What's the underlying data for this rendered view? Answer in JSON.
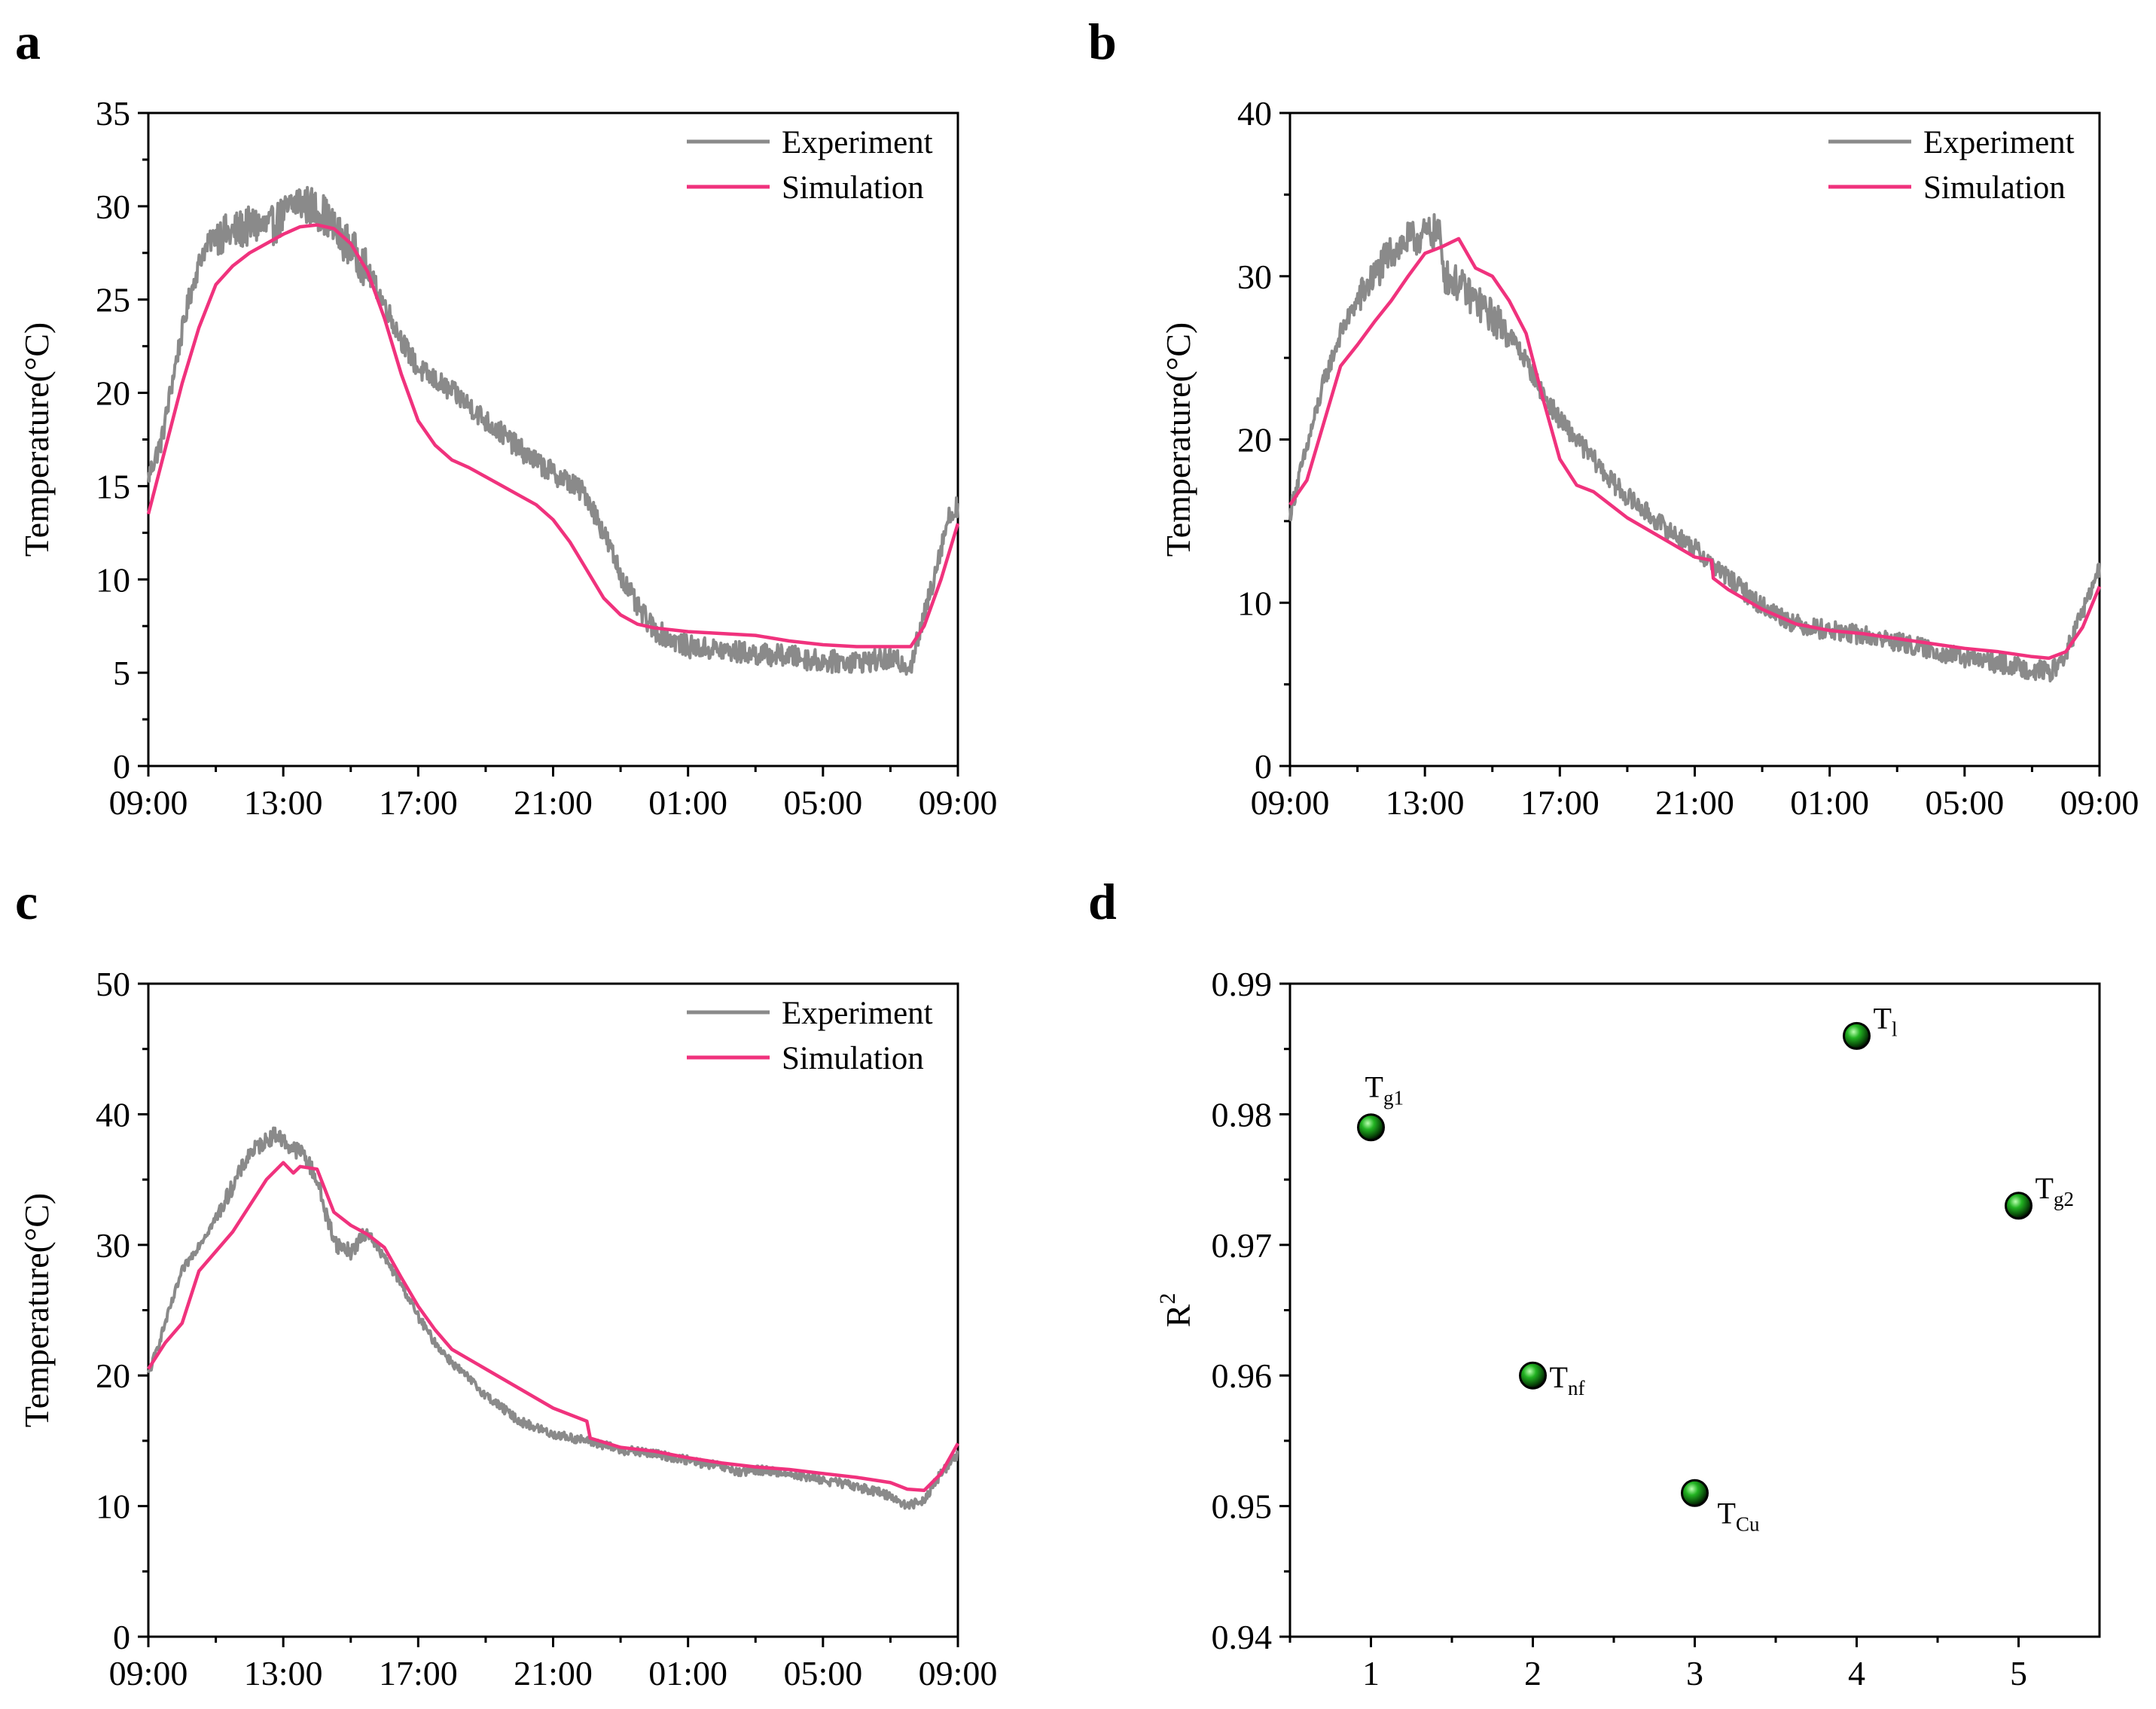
{
  "chart_data": [
    {
      "panel": "a",
      "type": "line",
      "xlabel": "",
      "ylabel": "Temperature(°C)",
      "ylim": [
        0,
        35
      ],
      "yticks": [
        "0",
        "5",
        "10",
        "15",
        "20",
        "25",
        "30",
        "35"
      ],
      "xlim": [
        0,
        24
      ],
      "xticks": [
        {
          "hour": 0,
          "label": "09:00"
        },
        {
          "hour": 4,
          "label": "13:00"
        },
        {
          "hour": 8,
          "label": "17:00"
        },
        {
          "hour": 12,
          "label": "21:00"
        },
        {
          "hour": 16,
          "label": "01:00"
        },
        {
          "hour": 20,
          "label": "05:00"
        },
        {
          "hour": 24,
          "label": "09:00"
        }
      ],
      "legend": "top-right",
      "series": [
        {
          "name": "Experiment",
          "color": "#8a8a8a",
          "noise": 0.6,
          "x": [
            0,
            0.4,
            0.8,
            1.2,
            1.6,
            2.0,
            2.4,
            2.8,
            3.2,
            3.6,
            4.0,
            4.4,
            4.8,
            5.2,
            5.6,
            6.0,
            6.4,
            6.8,
            7.2,
            7.6,
            8.0,
            8.4,
            8.8,
            9.2,
            9.6,
            10.0,
            10.5,
            11.0,
            11.5,
            12.0,
            12.5,
            13.0,
            13.5,
            14.0,
            14.5,
            15.0,
            15.5,
            16.0,
            17.0,
            18.0,
            19.0,
            20.0,
            21.0,
            22.0,
            22.6,
            23.0,
            23.4,
            23.7,
            24.0
          ],
          "y": [
            15.5,
            17.5,
            21.5,
            25.0,
            27.5,
            28.5,
            28.5,
            28.8,
            29.0,
            28.8,
            29.5,
            30.3,
            30.0,
            29.6,
            28.5,
            27.8,
            26.8,
            25.5,
            24.0,
            22.5,
            21.3,
            20.8,
            20.3,
            19.8,
            19.2,
            18.5,
            17.8,
            17.0,
            16.3,
            15.7,
            15.2,
            14.5,
            12.5,
            10.3,
            8.5,
            7.3,
            6.8,
            6.4,
            6.2,
            6.0,
            5.9,
            5.6,
            5.6,
            5.7,
            5.4,
            8.0,
            11.0,
            13.2,
            14.0
          ]
        },
        {
          "name": "Simulation",
          "color": "#f0327d",
          "noise": 0,
          "x": [
            0,
            0.5,
            1.0,
            1.5,
            2.0,
            2.5,
            3.0,
            3.5,
            4.0,
            4.5,
            5.0,
            5.5,
            6.0,
            6.5,
            7.0,
            7.5,
            8.0,
            8.5,
            9.0,
            9.5,
            10.0,
            10.5,
            11.0,
            11.5,
            12.0,
            12.5,
            13.0,
            13.5,
            14.0,
            14.5,
            15.0,
            16.0,
            17.0,
            18.0,
            19.0,
            20.0,
            21.0,
            22.0,
            22.6,
            23.0,
            23.5,
            24.0
          ],
          "y": [
            13.5,
            17.0,
            20.5,
            23.5,
            25.8,
            26.8,
            27.5,
            28.0,
            28.5,
            28.9,
            29.0,
            28.8,
            28.0,
            26.5,
            24.0,
            21.0,
            18.5,
            17.2,
            16.4,
            16.0,
            15.5,
            15.0,
            14.5,
            14.0,
            13.2,
            12.0,
            10.5,
            9.0,
            8.1,
            7.6,
            7.4,
            7.2,
            7.1,
            7.0,
            6.7,
            6.5,
            6.4,
            6.4,
            6.4,
            7.5,
            10.0,
            13.0
          ]
        }
      ]
    },
    {
      "panel": "b",
      "type": "line",
      "xlabel": "",
      "ylabel": "Temperature(°C)",
      "ylim": [
        0,
        40
      ],
      "yticks": [
        "0",
        "10",
        "20",
        "30",
        "40"
      ],
      "xlim": [
        0,
        24
      ],
      "xticks": [
        {
          "hour": 0,
          "label": "09:00"
        },
        {
          "hour": 4,
          "label": "13:00"
        },
        {
          "hour": 8,
          "label": "17:00"
        },
        {
          "hour": 12,
          "label": "21:00"
        },
        {
          "hour": 16,
          "label": "01:00"
        },
        {
          "hour": 20,
          "label": "05:00"
        },
        {
          "hour": 24,
          "label": "09:00"
        }
      ],
      "legend": "top-right",
      "series": [
        {
          "name": "Experiment",
          "color": "#8a8a8a",
          "noise": 0.6,
          "x": [
            0,
            0.5,
            1.0,
            1.5,
            2.0,
            2.5,
            3.0,
            3.5,
            4.0,
            4.4,
            4.6,
            5.0,
            5.5,
            6.0,
            6.5,
            7.0,
            7.5,
            8.0,
            8.5,
            9.0,
            9.5,
            10.0,
            11.0,
            12.0,
            13.0,
            14.0,
            15.0,
            16.0,
            17.0,
            18.0,
            19.0,
            20.0,
            21.0,
            22.0,
            22.6,
            23.0,
            23.5,
            24.0
          ],
          "y": [
            15.5,
            19.5,
            23.5,
            26.5,
            28.5,
            30.0,
            31.5,
            32.2,
            32.5,
            32.8,
            30.0,
            29.5,
            28.5,
            27.5,
            26.5,
            24.8,
            22.8,
            21.2,
            20.0,
            18.8,
            17.5,
            16.5,
            14.8,
            13.3,
            11.5,
            9.8,
            8.7,
            8.3,
            8.0,
            7.6,
            7.1,
            6.6,
            6.3,
            5.9,
            5.8,
            6.8,
            9.5,
            12.0
          ]
        },
        {
          "name": "Simulation",
          "color": "#f0327d",
          "noise": 0,
          "x": [
            0,
            0.5,
            1.0,
            1.5,
            2.0,
            2.5,
            3.0,
            3.5,
            4.0,
            4.5,
            5.0,
            5.5,
            6.0,
            6.5,
            7.0,
            7.5,
            8.0,
            8.5,
            9.0,
            9.5,
            10.0,
            11.0,
            12.0,
            12.5,
            12.55,
            13.0,
            14.0,
            15.0,
            16.0,
            17.0,
            18.0,
            19.0,
            20.0,
            21.0,
            22.0,
            22.5,
            23.0,
            23.5,
            24.0
          ],
          "y": [
            16.0,
            17.5,
            21.0,
            24.5,
            25.8,
            27.2,
            28.5,
            30.0,
            31.4,
            31.8,
            32.3,
            30.5,
            30.0,
            28.5,
            26.5,
            22.5,
            18.8,
            17.2,
            16.8,
            16.0,
            15.2,
            14.0,
            12.8,
            12.6,
            11.5,
            10.8,
            9.6,
            8.7,
            8.3,
            8.1,
            7.8,
            7.5,
            7.2,
            7.0,
            6.7,
            6.6,
            7.0,
            8.5,
            11.0
          ]
        }
      ]
    },
    {
      "panel": "c",
      "type": "line",
      "xlabel": "",
      "ylabel": "Temperature(°C)",
      "ylim": [
        0,
        50
      ],
      "yticks": [
        "0",
        "10",
        "20",
        "30",
        "40",
        "50"
      ],
      "xlim": [
        0,
        24
      ],
      "xticks": [
        {
          "hour": 0,
          "label": "09:00"
        },
        {
          "hour": 4,
          "label": "13:00"
        },
        {
          "hour": 8,
          "label": "17:00"
        },
        {
          "hour": 12,
          "label": "21:00"
        },
        {
          "hour": 16,
          "label": "01:00"
        },
        {
          "hour": 20,
          "label": "05:00"
        },
        {
          "hour": 24,
          "label": "09:00"
        }
      ],
      "legend": "top-right",
      "series": [
        {
          "name": "Experiment",
          "color": "#8a8a8a",
          "noise": 0.35,
          "x": [
            0,
            0.5,
            1.0,
            1.5,
            2.0,
            2.5,
            3.0,
            3.5,
            3.8,
            4.2,
            4.6,
            5.0,
            5.3,
            5.6,
            6.0,
            6.5,
            7.0,
            7.5,
            8.0,
            8.5,
            9.0,
            10.0,
            11.0,
            12.0,
            13.0,
            14.0,
            15.0,
            16.0,
            17.0,
            17.6,
            18.0,
            19.0,
            20.0,
            21.0,
            22.0,
            22.5,
            23.0,
            23.5,
            24.0
          ],
          "y": [
            20.0,
            24.0,
            28.0,
            30.0,
            32.0,
            34.5,
            37.0,
            38.0,
            38.5,
            37.5,
            37.0,
            35.0,
            32.0,
            30.0,
            29.5,
            31.0,
            29.0,
            27.0,
            24.5,
            22.5,
            21.0,
            18.5,
            16.5,
            15.5,
            15.0,
            14.3,
            14.0,
            13.5,
            13.0,
            12.5,
            12.8,
            12.5,
            12.0,
            11.5,
            10.8,
            10.0,
            10.5,
            12.5,
            14.0
          ]
        },
        {
          "name": "Simulation",
          "color": "#f0327d",
          "noise": 0,
          "x": [
            0,
            0.5,
            1.0,
            1.5,
            2.0,
            2.5,
            3.0,
            3.5,
            4.0,
            4.3,
            4.5,
            5.0,
            5.5,
            6.0,
            6.5,
            7.0,
            7.5,
            8.0,
            8.5,
            9.0,
            10.0,
            11.0,
            12.0,
            13.0,
            13.1,
            14.0,
            15.0,
            16.0,
            17.0,
            18.0,
            19.0,
            20.0,
            21.0,
            22.0,
            22.5,
            23.0,
            23.5,
            24.0
          ],
          "y": [
            20.5,
            22.5,
            24.0,
            28.0,
            29.5,
            31.0,
            33.0,
            35.0,
            36.3,
            35.5,
            36.0,
            35.8,
            32.5,
            31.5,
            30.8,
            29.8,
            27.5,
            25.3,
            23.5,
            22.0,
            20.5,
            19.0,
            17.5,
            16.5,
            15.2,
            14.5,
            14.2,
            13.7,
            13.3,
            13.0,
            12.8,
            12.5,
            12.2,
            11.8,
            11.3,
            11.2,
            12.5,
            14.8
          ]
        }
      ]
    },
    {
      "panel": "d",
      "type": "scatter",
      "xlabel": "",
      "ylabel": "R",
      "ylabel_sup": "2",
      "xlim": [
        0.5,
        5.5
      ],
      "xticks": [
        "1",
        "2",
        "3",
        "4",
        "5"
      ],
      "ylim": [
        0.94,
        0.99
      ],
      "yticks": [
        "0.94",
        "0.95",
        "0.96",
        "0.97",
        "0.98",
        "0.99"
      ],
      "marker_color": "#1a8c1a",
      "points": [
        {
          "x": 1,
          "y": 0.979,
          "label": "T",
          "sub": "g1",
          "label_pos": "above"
        },
        {
          "x": 2,
          "y": 0.96,
          "label": "T",
          "sub": "nf",
          "label_pos": "right"
        },
        {
          "x": 3,
          "y": 0.951,
          "label": "T",
          "sub": "Cu",
          "label_pos": "below-right"
        },
        {
          "x": 4,
          "y": 0.986,
          "label": "T",
          "sub": "l",
          "label_pos": "upper-right"
        },
        {
          "x": 5,
          "y": 0.973,
          "label": "T",
          "sub": "g2",
          "label_pos": "upper-right"
        }
      ]
    }
  ]
}
